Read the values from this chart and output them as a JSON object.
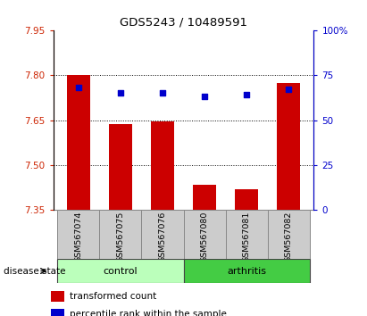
{
  "title": "GDS5243 / 10489591",
  "samples": [
    "GSM567074",
    "GSM567075",
    "GSM567076",
    "GSM567080",
    "GSM567081",
    "GSM567082"
  ],
  "bar_values": [
    7.8,
    7.638,
    7.645,
    7.435,
    7.42,
    7.772
  ],
  "percentile_values": [
    68,
    65,
    65,
    63,
    64,
    67
  ],
  "bar_bottom": 7.35,
  "ylim_left": [
    7.35,
    7.95
  ],
  "ylim_right": [
    0,
    100
  ],
  "yticks_left": [
    7.35,
    7.5,
    7.65,
    7.8,
    7.95
  ],
  "yticks_right": [
    0,
    25,
    50,
    75,
    100
  ],
  "ytick_labels_right": [
    "0",
    "25",
    "50",
    "75",
    "100%"
  ],
  "bar_color": "#cc0000",
  "dot_color": "#0000cc",
  "group_labels": [
    "control",
    "arthritis"
  ],
  "control_color": "#bbffbb",
  "arthritis_color": "#44cc44",
  "xlabel_text": "disease state",
  "legend_bar_label": "transformed count",
  "legend_dot_label": "percentile rank within the sample",
  "tick_label_color_left": "#cc2200",
  "tick_label_color_right": "#0000cc",
  "grid_yticks": [
    7.5,
    7.65,
    7.8
  ],
  "sample_box_color": "#cccccc",
  "sample_box_edge": "#888888"
}
